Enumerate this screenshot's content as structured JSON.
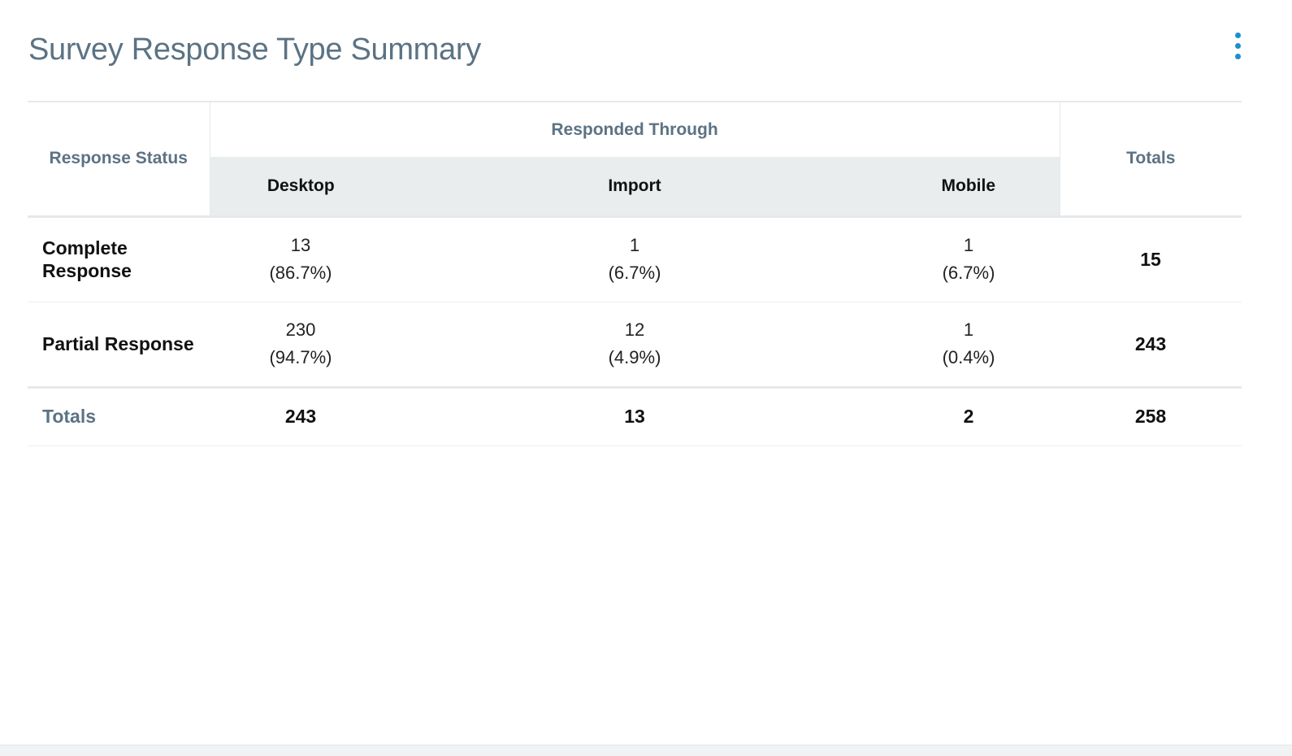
{
  "card": {
    "title": "Survey Response Type Summary",
    "menu_icon": "more-vertical-icon"
  },
  "table": {
    "status_header": "Response Status",
    "group_header": "Responded Through",
    "totals_header": "Totals",
    "channels": [
      "Desktop",
      "Import",
      "Mobile"
    ],
    "rows": [
      {
        "label": "Complete Response",
        "cells": [
          {
            "count": "13",
            "pct": "(86.7%)"
          },
          {
            "count": "1",
            "pct": "(6.7%)"
          },
          {
            "count": "1",
            "pct": "(6.7%)"
          }
        ],
        "total": "15"
      },
      {
        "label": "Partial Response",
        "cells": [
          {
            "count": "230",
            "pct": "(94.7%)"
          },
          {
            "count": "12",
            "pct": "(4.9%)"
          },
          {
            "count": "1",
            "pct": "(0.4%)"
          }
        ],
        "total": "243"
      }
    ],
    "totals_row": {
      "label": "Totals",
      "values": [
        "243",
        "13",
        "2"
      ],
      "grand_total": "258"
    }
  },
  "colors": {
    "title": "#5b7384",
    "accent": "#1b8fd0",
    "subheader_bg": "#e9edee"
  }
}
